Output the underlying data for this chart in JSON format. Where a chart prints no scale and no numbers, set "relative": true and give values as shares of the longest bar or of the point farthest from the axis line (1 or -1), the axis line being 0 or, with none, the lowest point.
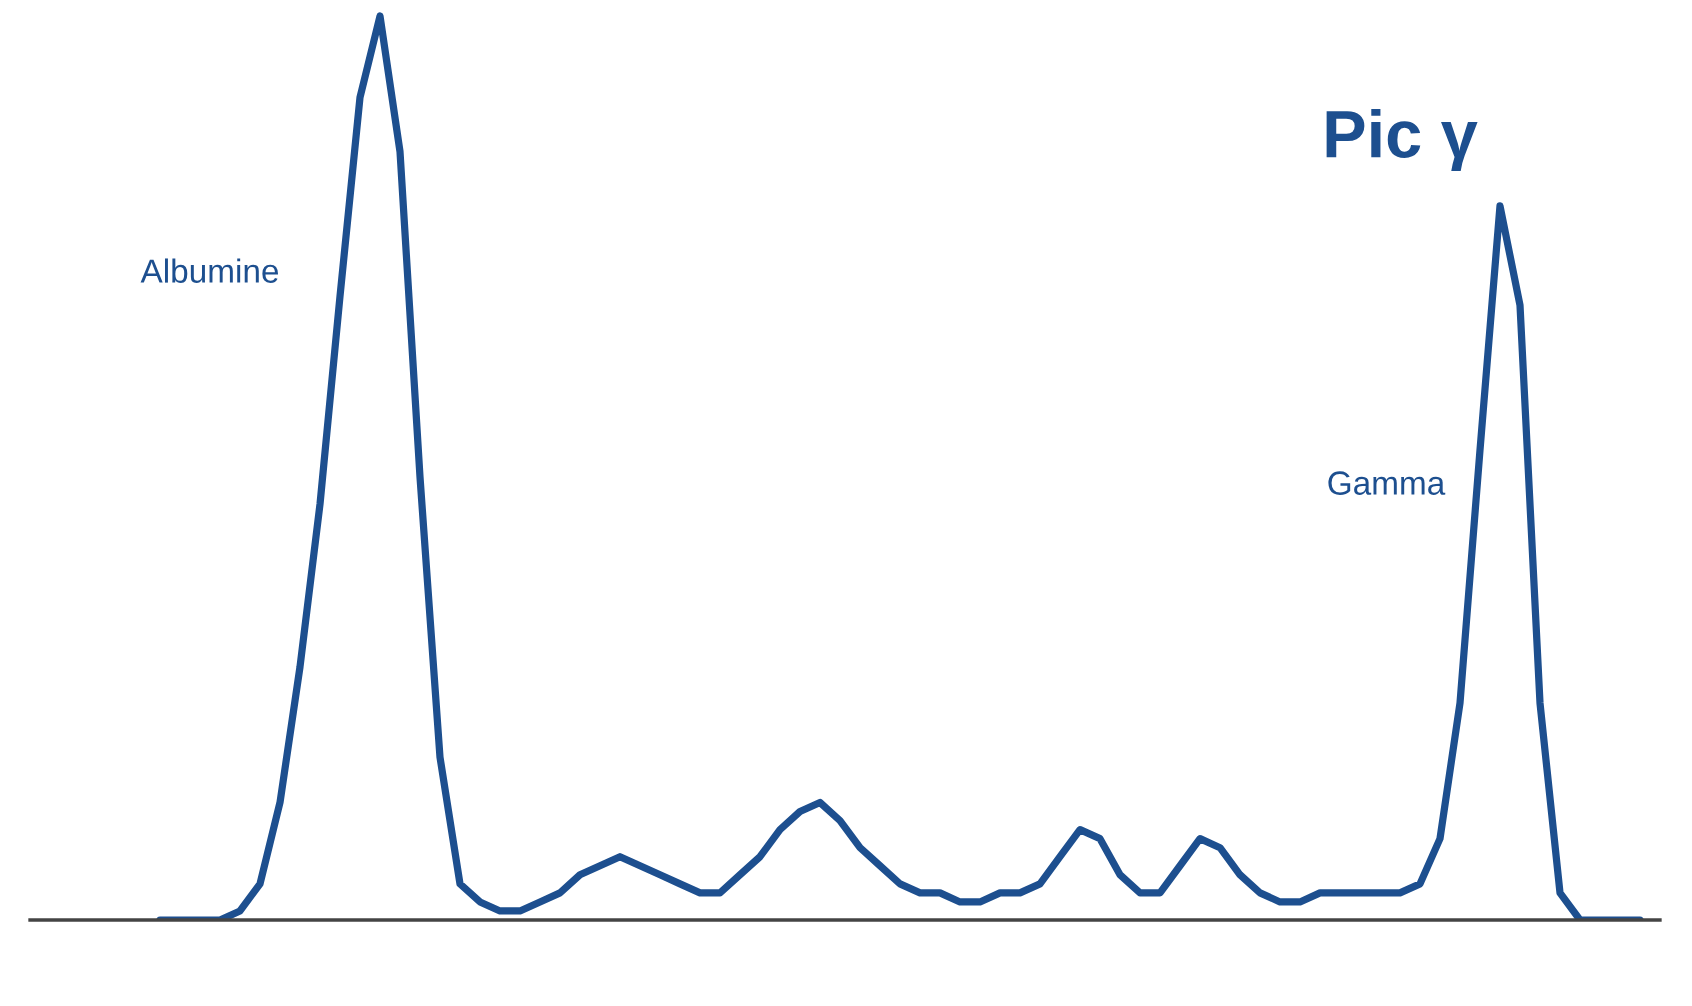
{
  "chart_data": {
    "type": "line",
    "relative": true,
    "categories": [
      null,
      null,
      null,
      null,
      null,
      null,
      null,
      null,
      null,
      null,
      null,
      null,
      null,
      null,
      null,
      null,
      null,
      null,
      null,
      null,
      null,
      null,
      null,
      null,
      null,
      null,
      null,
      null,
      null,
      null,
      null,
      null,
      null,
      null,
      null,
      null,
      null,
      null,
      null,
      null,
      null,
      null,
      null,
      null,
      null,
      null,
      null,
      null,
      null,
      null,
      null,
      null,
      null,
      null,
      null,
      null,
      null,
      null,
      null,
      null,
      null,
      null,
      null,
      null,
      null,
      null,
      null,
      null,
      null,
      null,
      null,
      null,
      null,
      null,
      null
    ],
    "series": [
      {
        "color": "#1d4f8f",
        "values": [
          0.0,
          0.0,
          0.0,
          0.0,
          0.01,
          0.04,
          0.13,
          0.28,
          0.46,
          0.69,
          0.91,
          1.0,
          0.85,
          0.49,
          0.18,
          0.04,
          0.02,
          0.01,
          0.01,
          0.02,
          0.03,
          0.05,
          0.06,
          0.07,
          0.06,
          0.05,
          0.04,
          0.03,
          0.03,
          0.05,
          0.07,
          0.1,
          0.12,
          0.13,
          0.11,
          0.08,
          0.06,
          0.04,
          0.03,
          0.03,
          0.02,
          0.02,
          0.03,
          0.03,
          0.04,
          0.07,
          0.1,
          0.09,
          0.05,
          0.03,
          0.03,
          0.06,
          0.09,
          0.08,
          0.05,
          0.03,
          0.02,
          0.02,
          0.03,
          0.03,
          0.03,
          0.03,
          0.03,
          0.04,
          0.09,
          0.24,
          0.52,
          0.79,
          0.68,
          0.24,
          0.03,
          0.0,
          0.0,
          0.0,
          0.0
        ]
      }
    ],
    "marker": "none",
    "line_style": "solid",
    "grid": false,
    "annotations": [
      "Albumine",
      "Gamma",
      "Pic γ"
    ]
  }
}
